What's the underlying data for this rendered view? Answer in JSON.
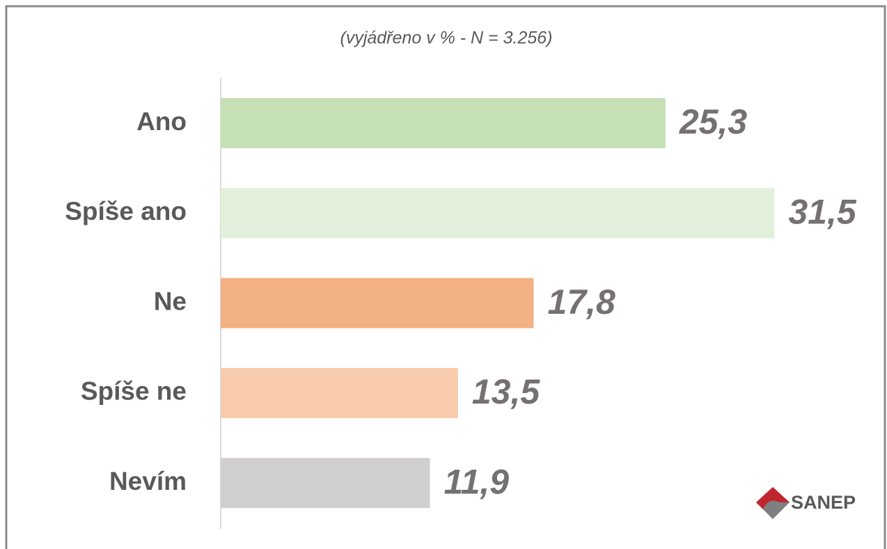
{
  "chart_data": {
    "type": "hbar",
    "subtitle": "(vyjádřeno v % - N = 3.256)",
    "categories": [
      "Ano",
      "Spíše ano",
      "Ne",
      "Spíše ne",
      "Nevím"
    ],
    "values": [
      25.3,
      31.5,
      17.8,
      13.5,
      11.9
    ],
    "value_labels": [
      "25,3",
      "31,5",
      "17,8",
      "13,5",
      "11,9"
    ],
    "colors": [
      "#c5e0b4",
      "#e2efda",
      "#f4b183",
      "#f8cbad",
      "#d0cece"
    ],
    "logo": "SANEP"
  }
}
